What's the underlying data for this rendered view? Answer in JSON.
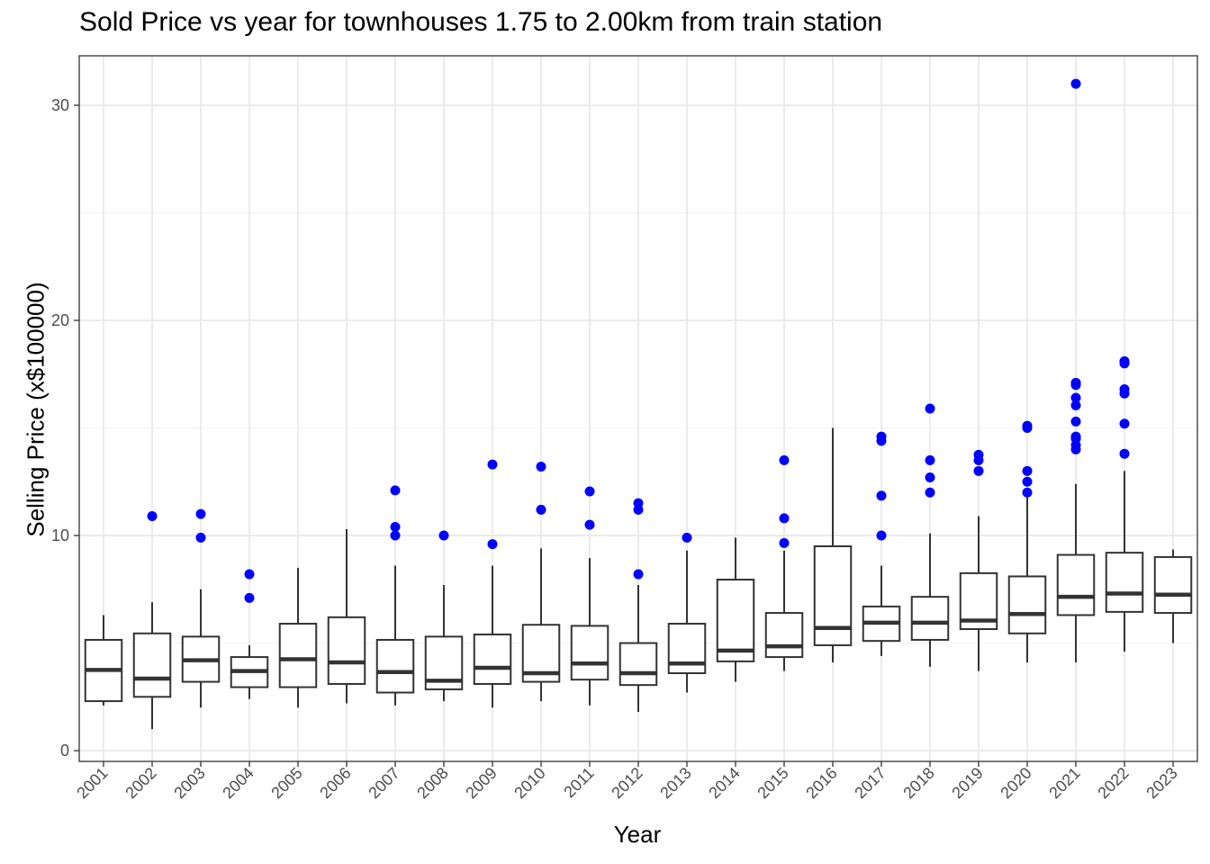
{
  "chart_data": {
    "type": "boxplot",
    "title": "Sold Price vs year for townhouses 1.75 to 2.00km from train station",
    "xlabel": "Year",
    "ylabel": "Selling Price (x$100000)",
    "ylim": [
      -0.5,
      32.3
    ],
    "yticks": [
      0,
      10,
      20,
      30
    ],
    "grid": true,
    "outlier_color": "#0000ff",
    "box_color": "#333333",
    "categories": [
      "2001",
      "2002",
      "2003",
      "2004",
      "2005",
      "2006",
      "2007",
      "2008",
      "2009",
      "2010",
      "2011",
      "2012",
      "2013",
      "2014",
      "2015",
      "2016",
      "2017",
      "2018",
      "2019",
      "2020",
      "2021",
      "2022",
      "2023"
    ],
    "boxes": [
      {
        "min": 2.1,
        "q1": 2.3,
        "median": 3.75,
        "q3": 5.15,
        "max": 6.3,
        "outliers": []
      },
      {
        "min": 1.0,
        "q1": 2.5,
        "median": 3.35,
        "q3": 5.45,
        "max": 6.9,
        "outliers": [
          10.9
        ]
      },
      {
        "min": 2.0,
        "q1": 3.2,
        "median": 4.2,
        "q3": 5.3,
        "max": 7.5,
        "outliers": [
          11.0,
          9.9
        ]
      },
      {
        "min": 2.4,
        "q1": 2.95,
        "median": 3.7,
        "q3": 4.35,
        "max": 4.9,
        "outliers": [
          8.2,
          7.1
        ]
      },
      {
        "min": 2.0,
        "q1": 2.95,
        "median": 4.25,
        "q3": 5.9,
        "max": 8.5,
        "outliers": []
      },
      {
        "min": 2.2,
        "q1": 3.1,
        "median": 4.1,
        "q3": 6.2,
        "max": 10.3,
        "outliers": []
      },
      {
        "min": 2.1,
        "q1": 2.7,
        "median": 3.65,
        "q3": 5.15,
        "max": 8.6,
        "outliers": [
          12.1,
          10.4,
          10.0
        ]
      },
      {
        "min": 2.3,
        "q1": 2.85,
        "median": 3.25,
        "q3": 5.3,
        "max": 7.7,
        "outliers": [
          10.0
        ]
      },
      {
        "min": 2.0,
        "q1": 3.1,
        "median": 3.85,
        "q3": 5.4,
        "max": 8.6,
        "outliers": [
          13.3,
          9.6
        ]
      },
      {
        "min": 2.3,
        "q1": 3.2,
        "median": 3.6,
        "q3": 5.85,
        "max": 9.4,
        "outliers": [
          13.2,
          11.2
        ]
      },
      {
        "min": 2.1,
        "q1": 3.3,
        "median": 4.05,
        "q3": 5.8,
        "max": 8.95,
        "outliers": [
          12.05,
          10.5
        ]
      },
      {
        "min": 1.8,
        "q1": 3.05,
        "median": 3.6,
        "q3": 5.0,
        "max": 7.7,
        "outliers": [
          11.5,
          11.2,
          8.2
        ]
      },
      {
        "min": 2.7,
        "q1": 3.6,
        "median": 4.05,
        "q3": 5.9,
        "max": 9.3,
        "outliers": [
          9.9
        ]
      },
      {
        "min": 3.2,
        "q1": 4.15,
        "median": 4.65,
        "q3": 7.95,
        "max": 9.9,
        "outliers": []
      },
      {
        "min": 3.7,
        "q1": 4.35,
        "median": 4.85,
        "q3": 6.4,
        "max": 9.3,
        "outliers": [
          13.5,
          10.8,
          9.65
        ]
      },
      {
        "min": 4.1,
        "q1": 4.9,
        "median": 5.7,
        "q3": 9.5,
        "max": 15.0,
        "outliers": []
      },
      {
        "min": 4.4,
        "q1": 5.1,
        "median": 5.95,
        "q3": 6.7,
        "max": 8.6,
        "outliers": [
          14.6,
          14.4,
          11.85,
          10.0
        ]
      },
      {
        "min": 3.9,
        "q1": 5.15,
        "median": 5.95,
        "q3": 7.15,
        "max": 10.1,
        "outliers": [
          15.9,
          13.5,
          12.7,
          12.0
        ]
      },
      {
        "min": 3.7,
        "q1": 5.65,
        "median": 6.05,
        "q3": 8.25,
        "max": 10.9,
        "outliers": [
          13.75,
          13.5,
          13.0
        ]
      },
      {
        "min": 4.1,
        "q1": 5.45,
        "median": 6.35,
        "q3": 8.1,
        "max": 11.9,
        "outliers": [
          15.1,
          15.0,
          13.0,
          12.5,
          12.0
        ]
      },
      {
        "min": 4.1,
        "q1": 6.3,
        "median": 7.15,
        "q3": 9.1,
        "max": 12.4,
        "outliers": [
          31.0,
          17.1,
          17.0,
          16.4,
          16.05,
          15.3,
          14.6,
          14.5,
          14.2,
          14.0
        ]
      },
      {
        "min": 4.6,
        "q1": 6.45,
        "median": 7.3,
        "q3": 9.2,
        "max": 13.0,
        "outliers": [
          18.1,
          18.0,
          16.8,
          16.6,
          15.2,
          13.8
        ]
      },
      {
        "min": 5.0,
        "q1": 6.4,
        "median": 7.25,
        "q3": 9.0,
        "max": 9.35,
        "outliers": []
      }
    ]
  }
}
